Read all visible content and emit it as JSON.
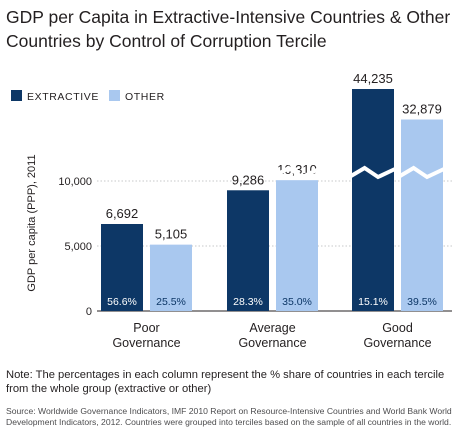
{
  "title": "GDP per Capita in Extractive-Intensive Countries & Other Countries by Control of Corruption Tercile",
  "note": "Note: The percentages in each column represent the % share of countries in each tercile from the whole group (extractive or other)",
  "source": "Source: Worldwide Governance Indicators, IMF 2010 Report on Resource-Intensive Countries and World Bank World Development Indicators, 2012. Countries were grouped into terciles based on the sample of all countries in the world.",
  "colors": {
    "extractive": "#0d3766",
    "other": "#a9c8ef",
    "grid": "#c7c8ca",
    "axis": "#231f20"
  },
  "chart_data": {
    "type": "bar",
    "ylabel": "GDP per capita (PPP), 2011",
    "xlabel": "",
    "legend_position": "top-left",
    "yticks": [
      0,
      5000,
      10000
    ],
    "ytick_labels": [
      "0",
      "5,000",
      "10,000"
    ],
    "axis_break": "y-axis broken above 10,000",
    "categories": [
      [
        "Poor",
        "Governance"
      ],
      [
        "Average",
        "Governance"
      ],
      [
        "Good",
        "Governance"
      ]
    ],
    "series": [
      {
        "name": "EXTRACTIVE",
        "values": [
          6692,
          9286,
          44235
        ],
        "value_labels": [
          "6,692",
          "9,286",
          "44,235"
        ],
        "share_labels": [
          "56.6%",
          "28.3%",
          "15.1%"
        ]
      },
      {
        "name": "OTHER",
        "values": [
          5105,
          10310,
          32879
        ],
        "value_labels": [
          "5,105",
          "10,310",
          "32,879"
        ],
        "share_labels": [
          "25.5%",
          "35.0%",
          "39.5%"
        ]
      }
    ]
  }
}
